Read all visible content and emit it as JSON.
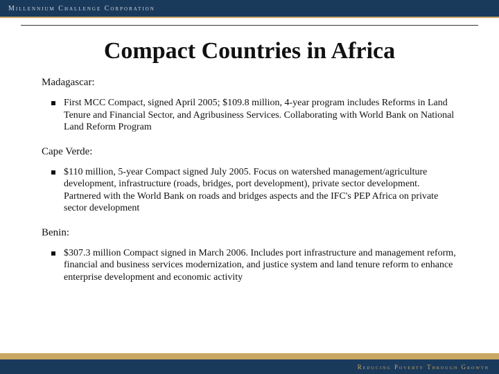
{
  "banner": {
    "top_text": "Millennium Challenge Corporation",
    "bottom_text": "Reducing Poverty Through Growth",
    "bg_color": "#1a3a5c",
    "accent_color": "#c9a864"
  },
  "title": "Compact Countries in Africa",
  "sections": [
    {
      "country": "Madagascar:",
      "bullet": "First MCC Compact, signed April 2005; $109.8 million, 4-year program includes Reforms in Land Tenure and Financial Sector, and Agribusiness Services.  Collaborating with World Bank on National Land Reform Program"
    },
    {
      "country": "Cape Verde:",
      "bullet": "$110 million, 5-year Compact signed July 2005.  Focus on watershed management/agriculture development, infrastructure (roads, bridges, port development), private sector development.  Partnered with the World Bank on roads and bridges aspects and the IFC's PEP Africa on private sector development"
    },
    {
      "country": "Benin:",
      "bullet": "$307.3 million Compact signed in March 2006. Includes port infrastructure and management reform, financial and business services modernization, and justice system and land tenure reform to enhance enterprise development and economic activity"
    }
  ]
}
